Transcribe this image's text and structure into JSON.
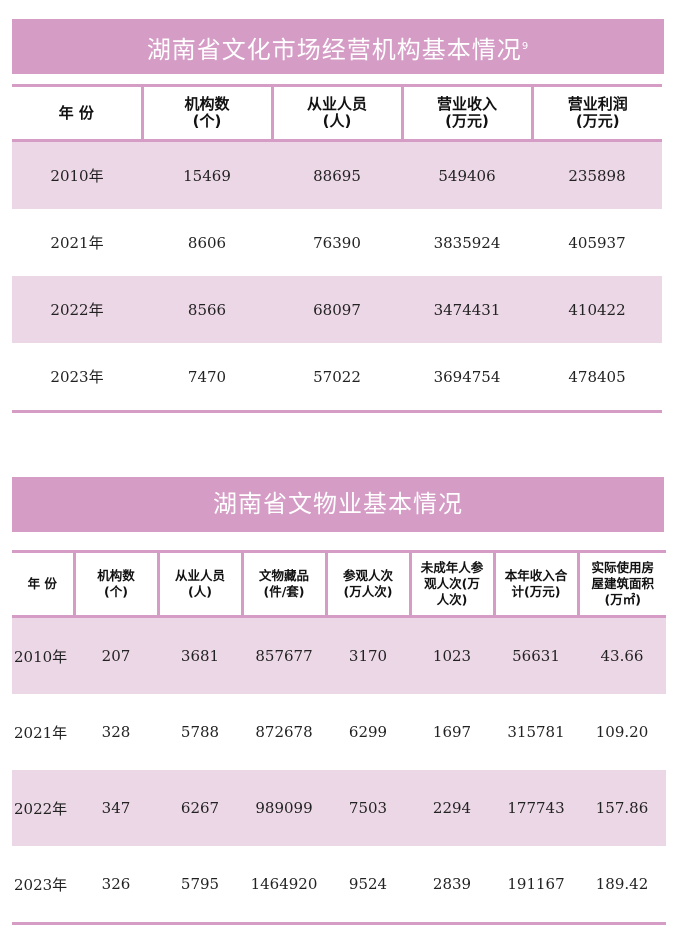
{
  "table1": {
    "title": "湖南省文化市场经营机构基本情况",
    "title_sup": "9",
    "headers": [
      [
        "年  份",
        ""
      ],
      [
        "机构数",
        "(个)"
      ],
      [
        "从业人员",
        "(人)"
      ],
      [
        "营业收入",
        "(万元)"
      ],
      [
        "营业利润",
        "(万元)"
      ]
    ],
    "rows": [
      [
        "2010年",
        "15469",
        "88695",
        "549406",
        "235898"
      ],
      [
        "2021年",
        "8606",
        "76390",
        "3835924",
        "405937"
      ],
      [
        "2022年",
        "8566",
        "68097",
        "3474431",
        "410422"
      ],
      [
        "2023年",
        "7470",
        "57022",
        "3694754",
        "478405"
      ]
    ]
  },
  "table2": {
    "title": "湖南省文物业基本情况",
    "headers": [
      [
        "年  份"
      ],
      [
        "机构数",
        "(个)"
      ],
      [
        "从业人员",
        "(人)"
      ],
      [
        "文物藏品",
        "(件/套)"
      ],
      [
        "参观人次",
        "(万人次)"
      ],
      [
        "未成年人参",
        "观人次(万",
        "人次)"
      ],
      [
        "本年收入合",
        "计(万元)"
      ],
      [
        "实际使用房",
        "屋建筑面积",
        "(万㎡)"
      ]
    ],
    "rows": [
      [
        "2010年",
        "207",
        "3681",
        "857677",
        "3170",
        "1023",
        "56631",
        "43.66"
      ],
      [
        "2021年",
        "328",
        "5788",
        "872678",
        "6299",
        "1697",
        "315781",
        "109.20"
      ],
      [
        "2022年",
        "347",
        "6267",
        "989099",
        "7503",
        "2294",
        "177743",
        "157.86"
      ],
      [
        "2023年",
        "326",
        "5795",
        "1464920",
        "9524",
        "2839",
        "191167",
        "189.42"
      ]
    ]
  },
  "colors": {
    "accent": "#d59cc6",
    "row_shade": "#ecd7e6"
  }
}
